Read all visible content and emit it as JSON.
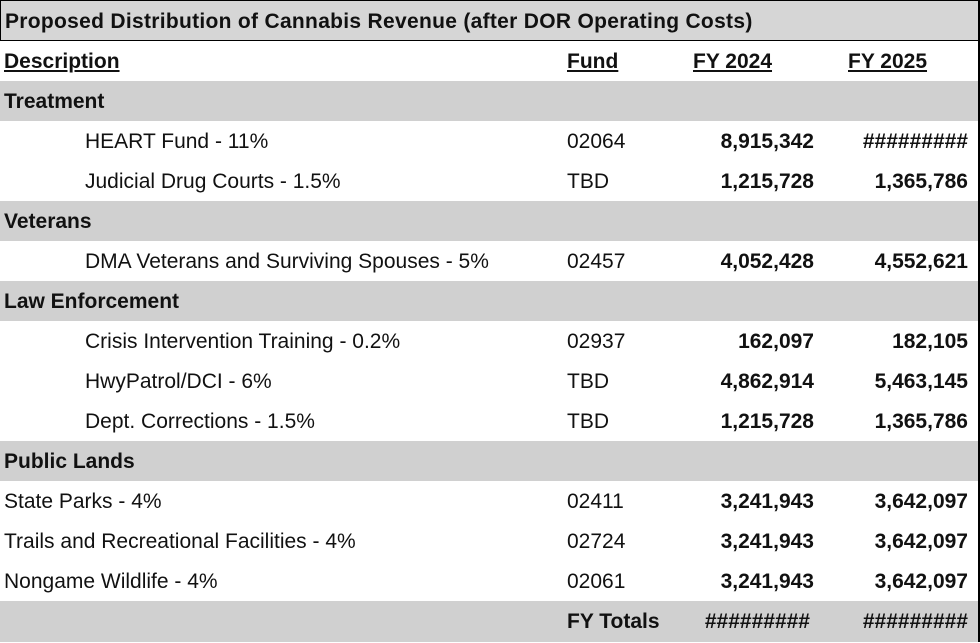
{
  "title": "Proposed Distribution of Cannabis Revenue (after DOR Operating Costs)",
  "header": [
    "Description",
    "Fund",
    "FY 2024",
    "FY 2025"
  ],
  "sections": [
    {
      "name": "Treatment",
      "rows": [
        [
          "HEART Fund - 11%",
          "02064",
          "8,915,342",
          "#########"
        ],
        [
          "Judicial Drug Courts - 1.5%",
          "TBD",
          "1,215,728",
          "1,365,786"
        ]
      ]
    },
    {
      "name": "Veterans",
      "rows": [
        [
          "DMA Veterans and Surviving Spouses - 5%",
          "02457",
          "4,052,428",
          "4,552,621"
        ]
      ]
    },
    {
      "name": "Law Enforcement",
      "rows": [
        [
          "Crisis Intervention Training - 0.2%",
          "02937",
          "162,097",
          "182,105"
        ],
        [
          "HwyPatrol/DCI - 6%",
          "TBD",
          "4,862,914",
          "5,463,145"
        ],
        [
          "Dept. Corrections - 1.5%",
          "TBD",
          "1,215,728",
          "1,365,786"
        ]
      ]
    },
    {
      "name": "Public Lands",
      "rows": [
        [
          "State Parks - 4%",
          "02411",
          "3,241,943",
          "3,642,097"
        ],
        [
          "Trails and Recreational Facilities - 4%",
          "02724",
          "3,241,943",
          "3,642,097"
        ],
        [
          "Nongame Wildlife - 4%",
          "02061",
          "3,241,943",
          "3,642,097"
        ]
      ]
    }
  ],
  "totals": {
    "label": "FY Totals",
    "fy2024": "#########",
    "fy2025": "#########"
  }
}
